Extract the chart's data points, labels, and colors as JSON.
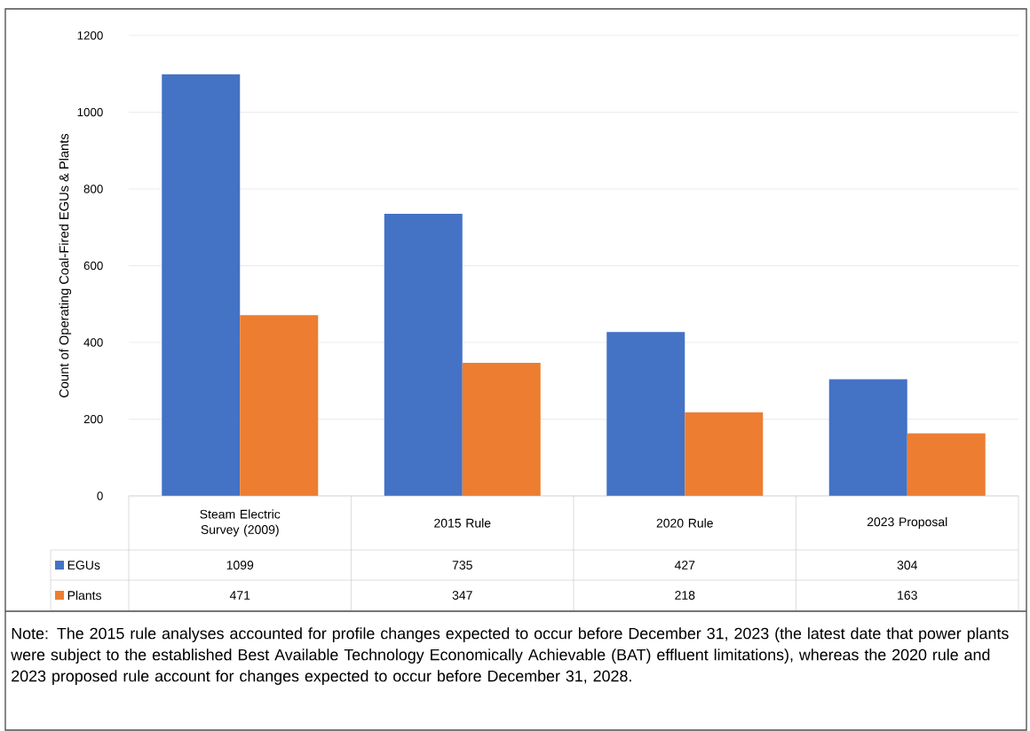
{
  "chart_data": {
    "type": "bar",
    "ylabel": "Count of Operating Coal-Fired EGUs & Plants",
    "categories": [
      "Steam Electric Survey (2009)",
      "2015 Rule",
      "2020 Rule",
      "2023 Proposal"
    ],
    "series": [
      {
        "name": "EGUs",
        "color": "#4472c4",
        "values": [
          1099,
          735,
          427,
          304
        ]
      },
      {
        "name": "Plants",
        "color": "#ed7d31",
        "values": [
          471,
          347,
          218,
          163
        ]
      }
    ],
    "ylim": [
      0,
      1200
    ],
    "yticks": [
      0,
      200,
      400,
      600,
      800,
      1000,
      1200
    ],
    "grid": "y",
    "data_labels": true,
    "legend": "bottom left",
    "annotations": [
      "Note: The 2015 rule analyses accounted for profile changes expected to occur before December 31, 2023 (the latest date that power plants were subject to the established Best Available Technology Economically Achievable (BAT) effluent limitations), whereas the 2020 rule and 2023 proposed rule account for changes expected to occur before December 31, 2028."
    ]
  }
}
